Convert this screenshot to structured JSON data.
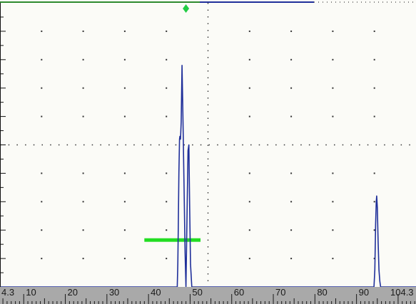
{
  "colors": {
    "background": "#fbfbf7",
    "grid": "#333333",
    "frame": "#111111",
    "top_line_green": "#2e8b2e",
    "top_line_blue": "#1f2f9a",
    "signal": "#1f2f9a",
    "gate": "#22dd22",
    "marker": "#22cc44",
    "scale_bar": "#a9a9a9",
    "scale_text": "#1a1a1a"
  },
  "screen": {
    "range_start": 4.3,
    "range_end": 104.3,
    "gate": {
      "start": 39.0,
      "end": 52.5,
      "level_pct": 16.5
    },
    "marker_position": 49.0,
    "signal": {
      "x": [
        4.3,
        46.6,
        46.9,
        47.05,
        47.15,
        47.3,
        47.45,
        47.55,
        47.7,
        47.85,
        48.05,
        48.3,
        48.8,
        49.0,
        49.1,
        49.3,
        49.5,
        49.7,
        49.9,
        50.1,
        50.4,
        94.2,
        94.4,
        94.6,
        94.75,
        94.85,
        95.0,
        95.2,
        95.4,
        95.6,
        95.8,
        104.3
      ],
      "y": [
        0,
        0,
        0,
        8,
        20,
        40,
        52,
        53,
        52,
        58,
        78,
        58,
        12,
        0,
        10,
        30,
        48,
        50,
        28,
        8,
        0,
        0,
        6,
        22,
        30,
        32,
        28,
        16,
        6,
        2,
        0,
        0
      ]
    }
  },
  "scale": {
    "labels": [
      "4.3",
      "10",
      "20",
      "30",
      "40",
      "50",
      "60",
      "70",
      "80",
      "90",
      "104.3"
    ],
    "tick_values": [
      10,
      20,
      30,
      40,
      50,
      60,
      70,
      80,
      90
    ]
  }
}
